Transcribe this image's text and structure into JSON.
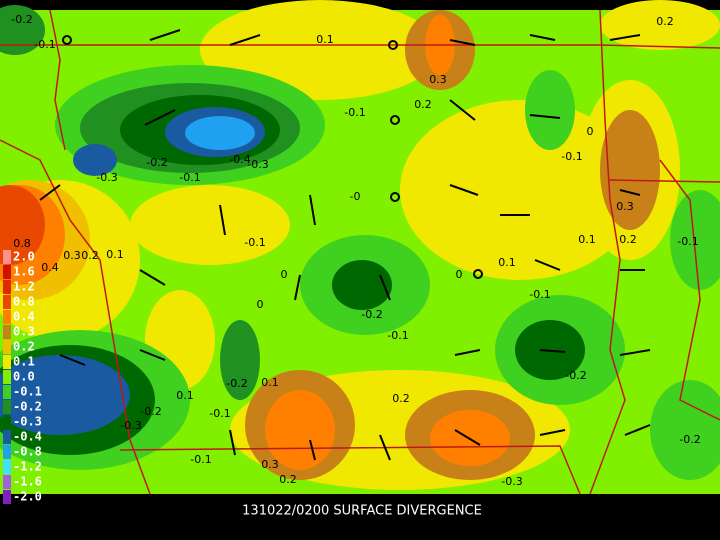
{
  "title": "131022/0200 SURFACE DIVERGENCE",
  "legend": [
    {
      "label": "2.0",
      "color": "#ff9090"
    },
    {
      "label": "1.6",
      "color": "#d01000"
    },
    {
      "label": "1.2",
      "color": "#e02800"
    },
    {
      "label": "0.8",
      "color": "#e84800"
    },
    {
      "label": "0.4",
      "color": "#ff8000"
    },
    {
      "label": "0.3",
      "color": "#c88018"
    },
    {
      "label": "0.2",
      "color": "#f0c000"
    },
    {
      "label": "0.1",
      "color": "#f0e800"
    },
    {
      "label": "0.0",
      "color": "#80f000"
    },
    {
      "label": "-0.1",
      "color": "#40d020"
    },
    {
      "label": "-0.2",
      "color": "#209020"
    },
    {
      "label": "-0.3",
      "color": "#006800"
    },
    {
      "label": "-0.4",
      "color": "#1a5aa0"
    },
    {
      "label": "-0.8",
      "color": "#20a0f0"
    },
    {
      "label": "-1.2",
      "color": "#40e0ff"
    },
    {
      "label": "-1.6",
      "color": "#a060e0"
    },
    {
      "label": "-2.0",
      "color": "#8020c0"
    }
  ],
  "contour_labels": [
    "-0.2",
    "-0.1",
    "0.1",
    "0.2",
    "0.3",
    "0.2",
    "-0.1",
    "0",
    "-0.1",
    "-0.4",
    "-0.3",
    "-0.2",
    "-0.3",
    "-0.1",
    "-0",
    "0.3",
    "0.1",
    "0.2",
    "-0.1",
    "-0.1",
    "0.8",
    "0.4",
    "0.3",
    "0.2",
    "0.1",
    "0",
    "0",
    "0.1",
    "-0.1",
    "0",
    "-0.2",
    "-0.1",
    "-0.2",
    "-0.2",
    "0.1",
    "0.1",
    "0.2",
    "-0.2",
    "-0.1",
    "-0.3",
    "-0.2",
    "-0.1",
    "0.3",
    "0.2",
    "-0.3"
  ]
}
